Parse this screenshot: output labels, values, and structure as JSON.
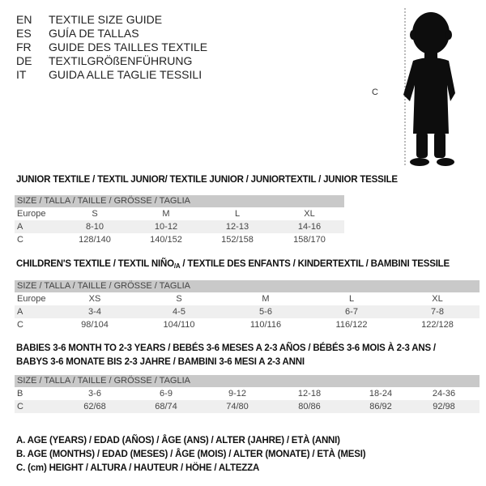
{
  "titles": [
    {
      "code": "EN",
      "text": "TEXTILE SIZE GUIDE"
    },
    {
      "code": "ES",
      "text": "GUÍA DE TALLAS"
    },
    {
      "code": "FR",
      "text": "GUIDE DES TAILLES TEXTILE"
    },
    {
      "code": "DE",
      "text": "TEXTILGRÖßENFÜHRUNG"
    },
    {
      "code": "IT",
      "text": "GUIDA ALLE TAGLIE TESSILI"
    }
  ],
  "figure": {
    "measure_label": "C"
  },
  "junior": {
    "heading": "JUNIOR TEXTILE / TEXTIL JUNIOR/ TEXTILE JUNIOR / JUNIORTEXTIL / JUNIOR TESSILE",
    "header": "SIZE / TALLA / TAILLE / GRÖSSE / TAGLIA",
    "rows": [
      {
        "label": "Europe",
        "values": [
          "S",
          "M",
          "L",
          "XL"
        ]
      },
      {
        "label": "A",
        "values": [
          "8-10",
          "10-12",
          "12-13",
          "14-16"
        ]
      },
      {
        "label": "C",
        "values": [
          "128/140",
          "140/152",
          "152/158",
          "158/170"
        ]
      }
    ]
  },
  "children": {
    "heading": "CHILDREN'S TEXTILE / TEXTIL NIÑO",
    "heading_sub": "/A",
    "heading_rest": " / TEXTILE DES ENFANTS / KINDERTEXTIL / BAMBINI TESSILE",
    "header": "SIZE / TALLA / TAILLE / GRÖSSE / TAGLIA",
    "rows": [
      {
        "label": "Europe",
        "values": [
          "XS",
          "S",
          "M",
          "L",
          "XL"
        ]
      },
      {
        "label": "A",
        "values": [
          "3-4",
          "4-5",
          "5-6",
          "6-7",
          "7-8"
        ]
      },
      {
        "label": "C",
        "values": [
          "98/104",
          "104/110",
          "110/116",
          "116/122",
          "122/128"
        ]
      }
    ]
  },
  "babies": {
    "heading_line1": "BABIES 3-6 MONTH TO 2-3 YEARS / BEBÉS 3-6 MESES A 2-3 AÑOS / BÉBÉS 3-6 MOIS À 2-3 ANS /",
    "heading_line2": "BABYS 3-6 MONATE BIS 2-3 JAHRE / BAMBINI 3-6 MESI A 2-3 ANNI",
    "header": "SIZE / TALLA / TAILLE / GRÖSSE / TAGLIA",
    "rows": [
      {
        "label": "B",
        "values": [
          "3-6",
          "6-9",
          "9-12",
          "12-18",
          "18-24",
          "24-36"
        ]
      },
      {
        "label": "C",
        "values": [
          "62/68",
          "68/74",
          "74/80",
          "80/86",
          "86/92",
          "92/98"
        ]
      }
    ]
  },
  "legend": [
    "A. AGE (YEARS) / EDAD (AÑOS) / ÂGE (ANS) / ALTER (JAHRE) / ETÀ (ANNI)",
    "B. AGE (MONTHS) / EDAD (MESES) / ÂGE (MOIS) / ALTER (MONATE) / ETÀ (MESI)",
    "C. (cm) HEIGHT / ALTURA / HAUTEUR / HÖHE / ALTEZZA"
  ],
  "colors": {
    "header_bar": "#c9c9c9",
    "shaded_row": "#efefef"
  }
}
